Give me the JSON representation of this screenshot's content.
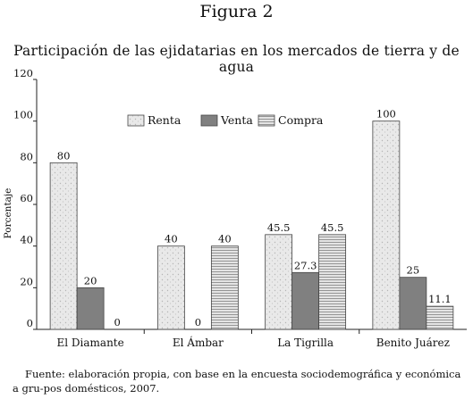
{
  "figure_label": "Figura 2",
  "source_note": "Fuente: elaboración propia, con base en la encuesta sociodemográfica y económica a gru-pos domésticos, 2007.",
  "colors": {
    "renta": "#e6e6e6",
    "venta": "#808080",
    "compra": "#cfcfcf",
    "axis": "#222222"
  },
  "chart_data": {
    "type": "bar",
    "title": "Participación de las ejidatarias en los mercados de tierra y de agua",
    "ylabel": "Porcentaje",
    "xlabel": "",
    "ylim": [
      0,
      120
    ],
    "yticks": [
      0,
      20,
      40,
      60,
      80,
      100,
      120
    ],
    "categories": [
      "El Diamante",
      "El Ámbar",
      "La Tigrilla",
      "Benito Juárez"
    ],
    "series": [
      {
        "name": "Renta",
        "values": [
          80,
          40,
          45.5,
          100
        ],
        "labels": [
          "80",
          "40",
          "45.5",
          "100"
        ]
      },
      {
        "name": "Venta",
        "values": [
          20,
          0,
          27.3,
          25
        ],
        "labels": [
          "20",
          "0",
          "27.3",
          "25"
        ]
      },
      {
        "name": "Compra",
        "values": [
          0,
          40,
          45.5,
          11.1
        ],
        "labels": [
          "0",
          "40",
          "45.5",
          "11.1"
        ]
      }
    ],
    "legend_position": "top-center",
    "grid": false
  }
}
